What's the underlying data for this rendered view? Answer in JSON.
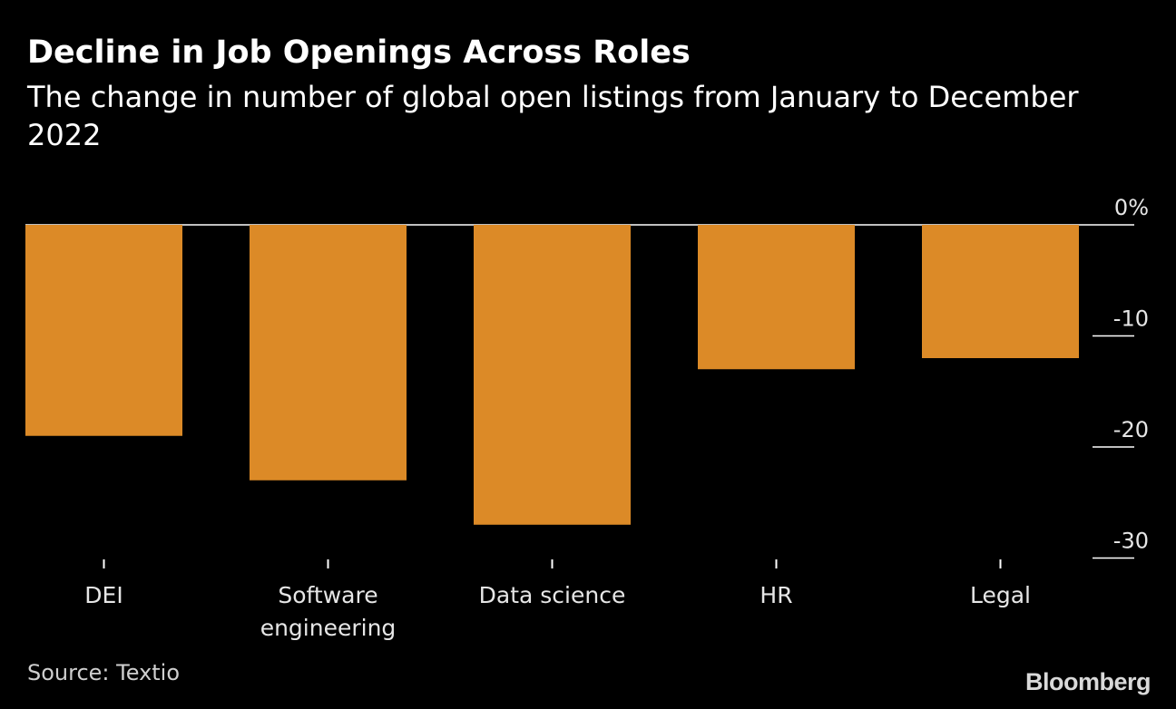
{
  "title": "Decline in Job Openings Across Roles",
  "subtitle": "The change in number of global open listings from January to December 2022",
  "source": "Source: Textio",
  "logo": "Bloomberg",
  "colors": {
    "background": "#000000",
    "bar": "#DC8A27",
    "text": "#ffffff",
    "axis_text": "#e6e6e6"
  },
  "chart_data": {
    "type": "bar",
    "title": "Decline in Job Openings Across Roles",
    "subtitle": "The change in number of global open listings from January to December 2022",
    "categories": [
      [
        "DEI"
      ],
      [
        "Software",
        "engineering"
      ],
      [
        "Data science"
      ],
      [
        "HR"
      ],
      [
        "Legal"
      ]
    ],
    "values": [
      -19,
      -23,
      -27,
      -13,
      -12
    ],
    "ylim": [
      -30,
      0
    ],
    "yticks": [
      {
        "value": 0,
        "label": "0%"
      },
      {
        "value": -10,
        "label": "-10"
      },
      {
        "value": -20,
        "label": "-20"
      },
      {
        "value": -30,
        "label": "-30"
      }
    ],
    "xlabel": "",
    "ylabel": "",
    "legend": "none"
  }
}
